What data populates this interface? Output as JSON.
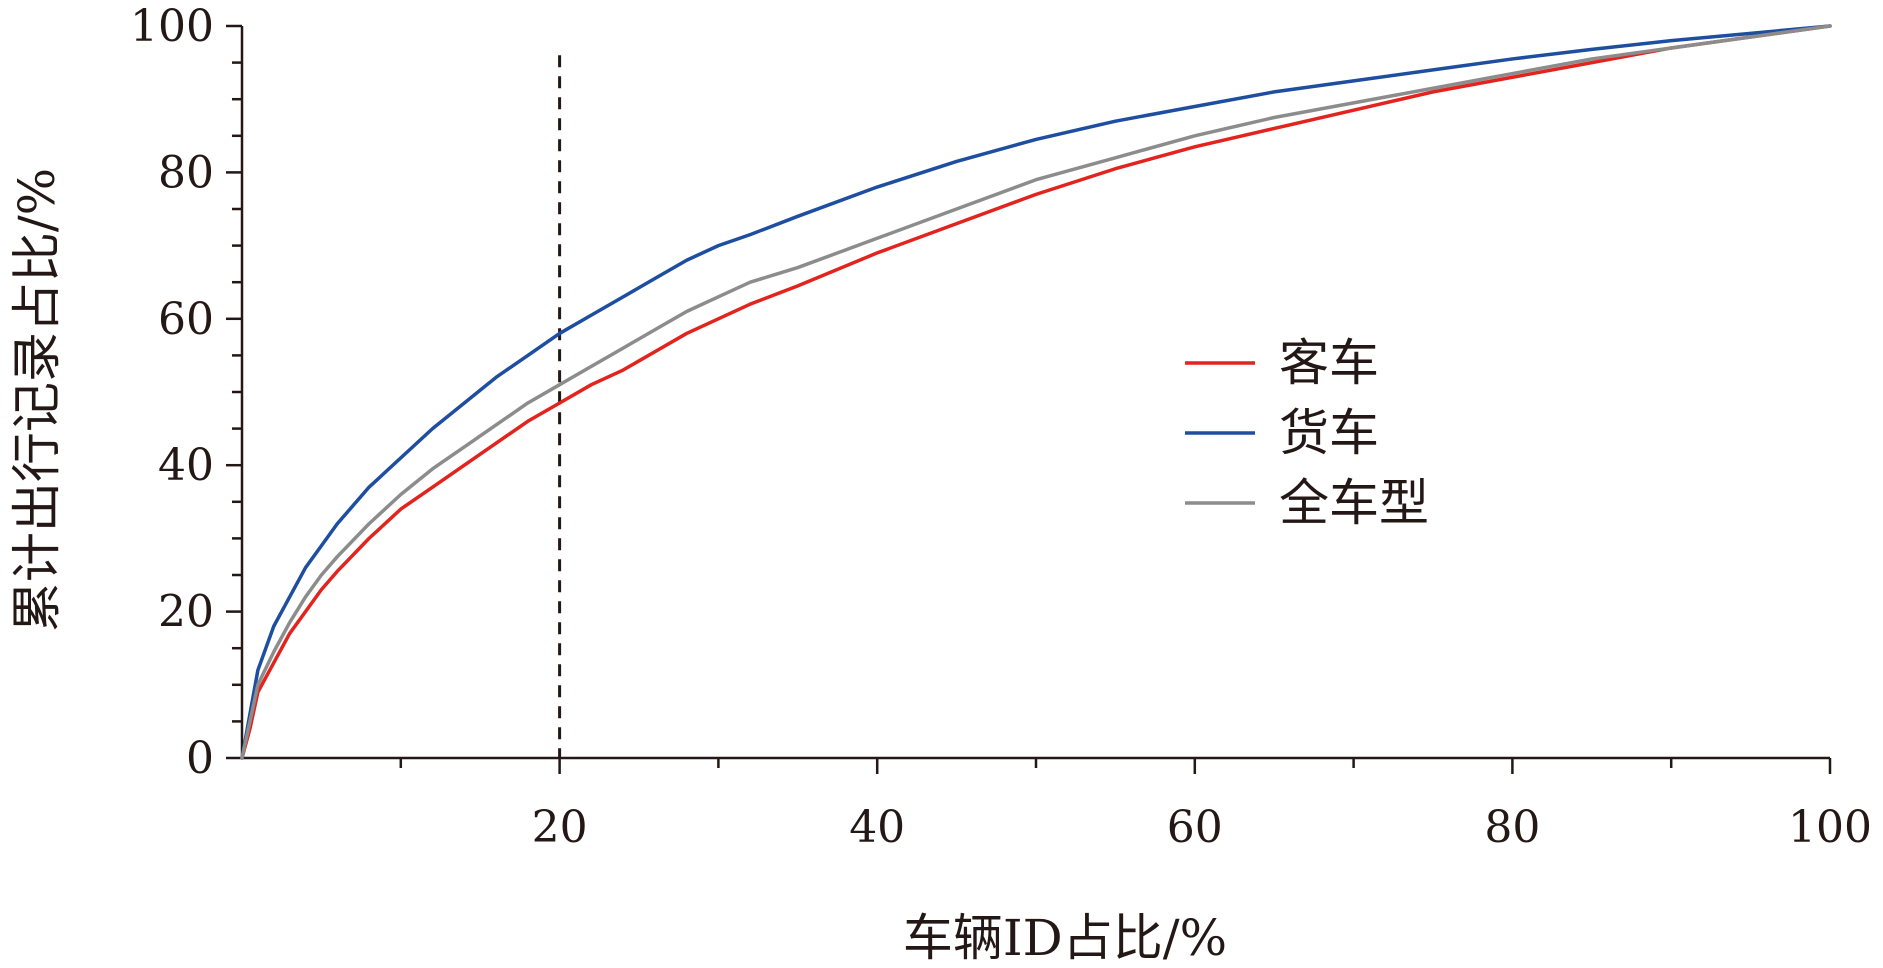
{
  "chart_data": {
    "type": "line",
    "title": "",
    "xlabel": "车辆ID占比/%",
    "ylabel": "累计出行记录占比/%",
    "xlim": [
      0,
      100
    ],
    "ylim": [
      0,
      100
    ],
    "x_ticks": [
      20,
      40,
      60,
      80,
      100
    ],
    "y_ticks": [
      0,
      20,
      40,
      60,
      80,
      100
    ],
    "reference_line_x": 20,
    "grid": false,
    "legend_position": "center-right",
    "series": [
      {
        "name": "客车",
        "color": "#e3231d",
        "points": [
          [
            0,
            0
          ],
          [
            0.5,
            4
          ],
          [
            1,
            9
          ],
          [
            2,
            13
          ],
          [
            3,
            17
          ],
          [
            4,
            20
          ],
          [
            5,
            23
          ],
          [
            6,
            25.5
          ],
          [
            8,
            30
          ],
          [
            10,
            34
          ],
          [
            12,
            37
          ],
          [
            14,
            40
          ],
          [
            16,
            43
          ],
          [
            18,
            46
          ],
          [
            20,
            48.5
          ],
          [
            22,
            51
          ],
          [
            24,
            53
          ],
          [
            26,
            55.5
          ],
          [
            28,
            58
          ],
          [
            30,
            60
          ],
          [
            32,
            62
          ],
          [
            35,
            64.5
          ],
          [
            40,
            69
          ],
          [
            45,
            73
          ],
          [
            50,
            77
          ],
          [
            55,
            80.5
          ],
          [
            60,
            83.5
          ],
          [
            65,
            86
          ],
          [
            70,
            88.5
          ],
          [
            75,
            91
          ],
          [
            80,
            93
          ],
          [
            85,
            95
          ],
          [
            90,
            97
          ],
          [
            95,
            98.5
          ],
          [
            100,
            100
          ]
        ]
      },
      {
        "name": "货车",
        "color": "#1d4ea0",
        "points": [
          [
            0,
            0
          ],
          [
            0.5,
            6
          ],
          [
            1,
            12
          ],
          [
            2,
            18
          ],
          [
            3,
            22
          ],
          [
            4,
            26
          ],
          [
            5,
            29
          ],
          [
            6,
            32
          ],
          [
            8,
            37
          ],
          [
            10,
            41
          ],
          [
            12,
            45
          ],
          [
            14,
            48.5
          ],
          [
            16,
            52
          ],
          [
            18,
            55
          ],
          [
            20,
            58
          ],
          [
            22,
            60.5
          ],
          [
            24,
            63
          ],
          [
            26,
            65.5
          ],
          [
            28,
            68
          ],
          [
            30,
            70
          ],
          [
            32,
            71.5
          ],
          [
            35,
            74
          ],
          [
            40,
            78
          ],
          [
            45,
            81.5
          ],
          [
            50,
            84.5
          ],
          [
            55,
            87
          ],
          [
            60,
            89
          ],
          [
            65,
            91
          ],
          [
            70,
            92.5
          ],
          [
            75,
            94
          ],
          [
            80,
            95.5
          ],
          [
            85,
            96.8
          ],
          [
            90,
            98
          ],
          [
            95,
            99
          ],
          [
            100,
            100
          ]
        ]
      },
      {
        "name": "全车型",
        "color": "#8c8c8c",
        "points": [
          [
            0,
            0
          ],
          [
            0.5,
            5
          ],
          [
            1,
            10
          ],
          [
            2,
            14.5
          ],
          [
            3,
            18.5
          ],
          [
            4,
            22
          ],
          [
            5,
            25
          ],
          [
            6,
            27.5
          ],
          [
            8,
            32
          ],
          [
            10,
            36
          ],
          [
            12,
            39.5
          ],
          [
            14,
            42.5
          ],
          [
            16,
            45.5
          ],
          [
            18,
            48.5
          ],
          [
            20,
            51
          ],
          [
            22,
            53.5
          ],
          [
            24,
            56
          ],
          [
            26,
            58.5
          ],
          [
            28,
            61
          ],
          [
            30,
            63
          ],
          [
            32,
            65
          ],
          [
            35,
            67
          ],
          [
            40,
            71
          ],
          [
            45,
            75
          ],
          [
            50,
            79
          ],
          [
            55,
            82
          ],
          [
            60,
            85
          ],
          [
            65,
            87.5
          ],
          [
            70,
            89.5
          ],
          [
            75,
            91.5
          ],
          [
            80,
            93.5
          ],
          [
            85,
            95.5
          ],
          [
            90,
            97
          ],
          [
            95,
            98.5
          ],
          [
            100,
            100
          ]
        ]
      }
    ]
  }
}
